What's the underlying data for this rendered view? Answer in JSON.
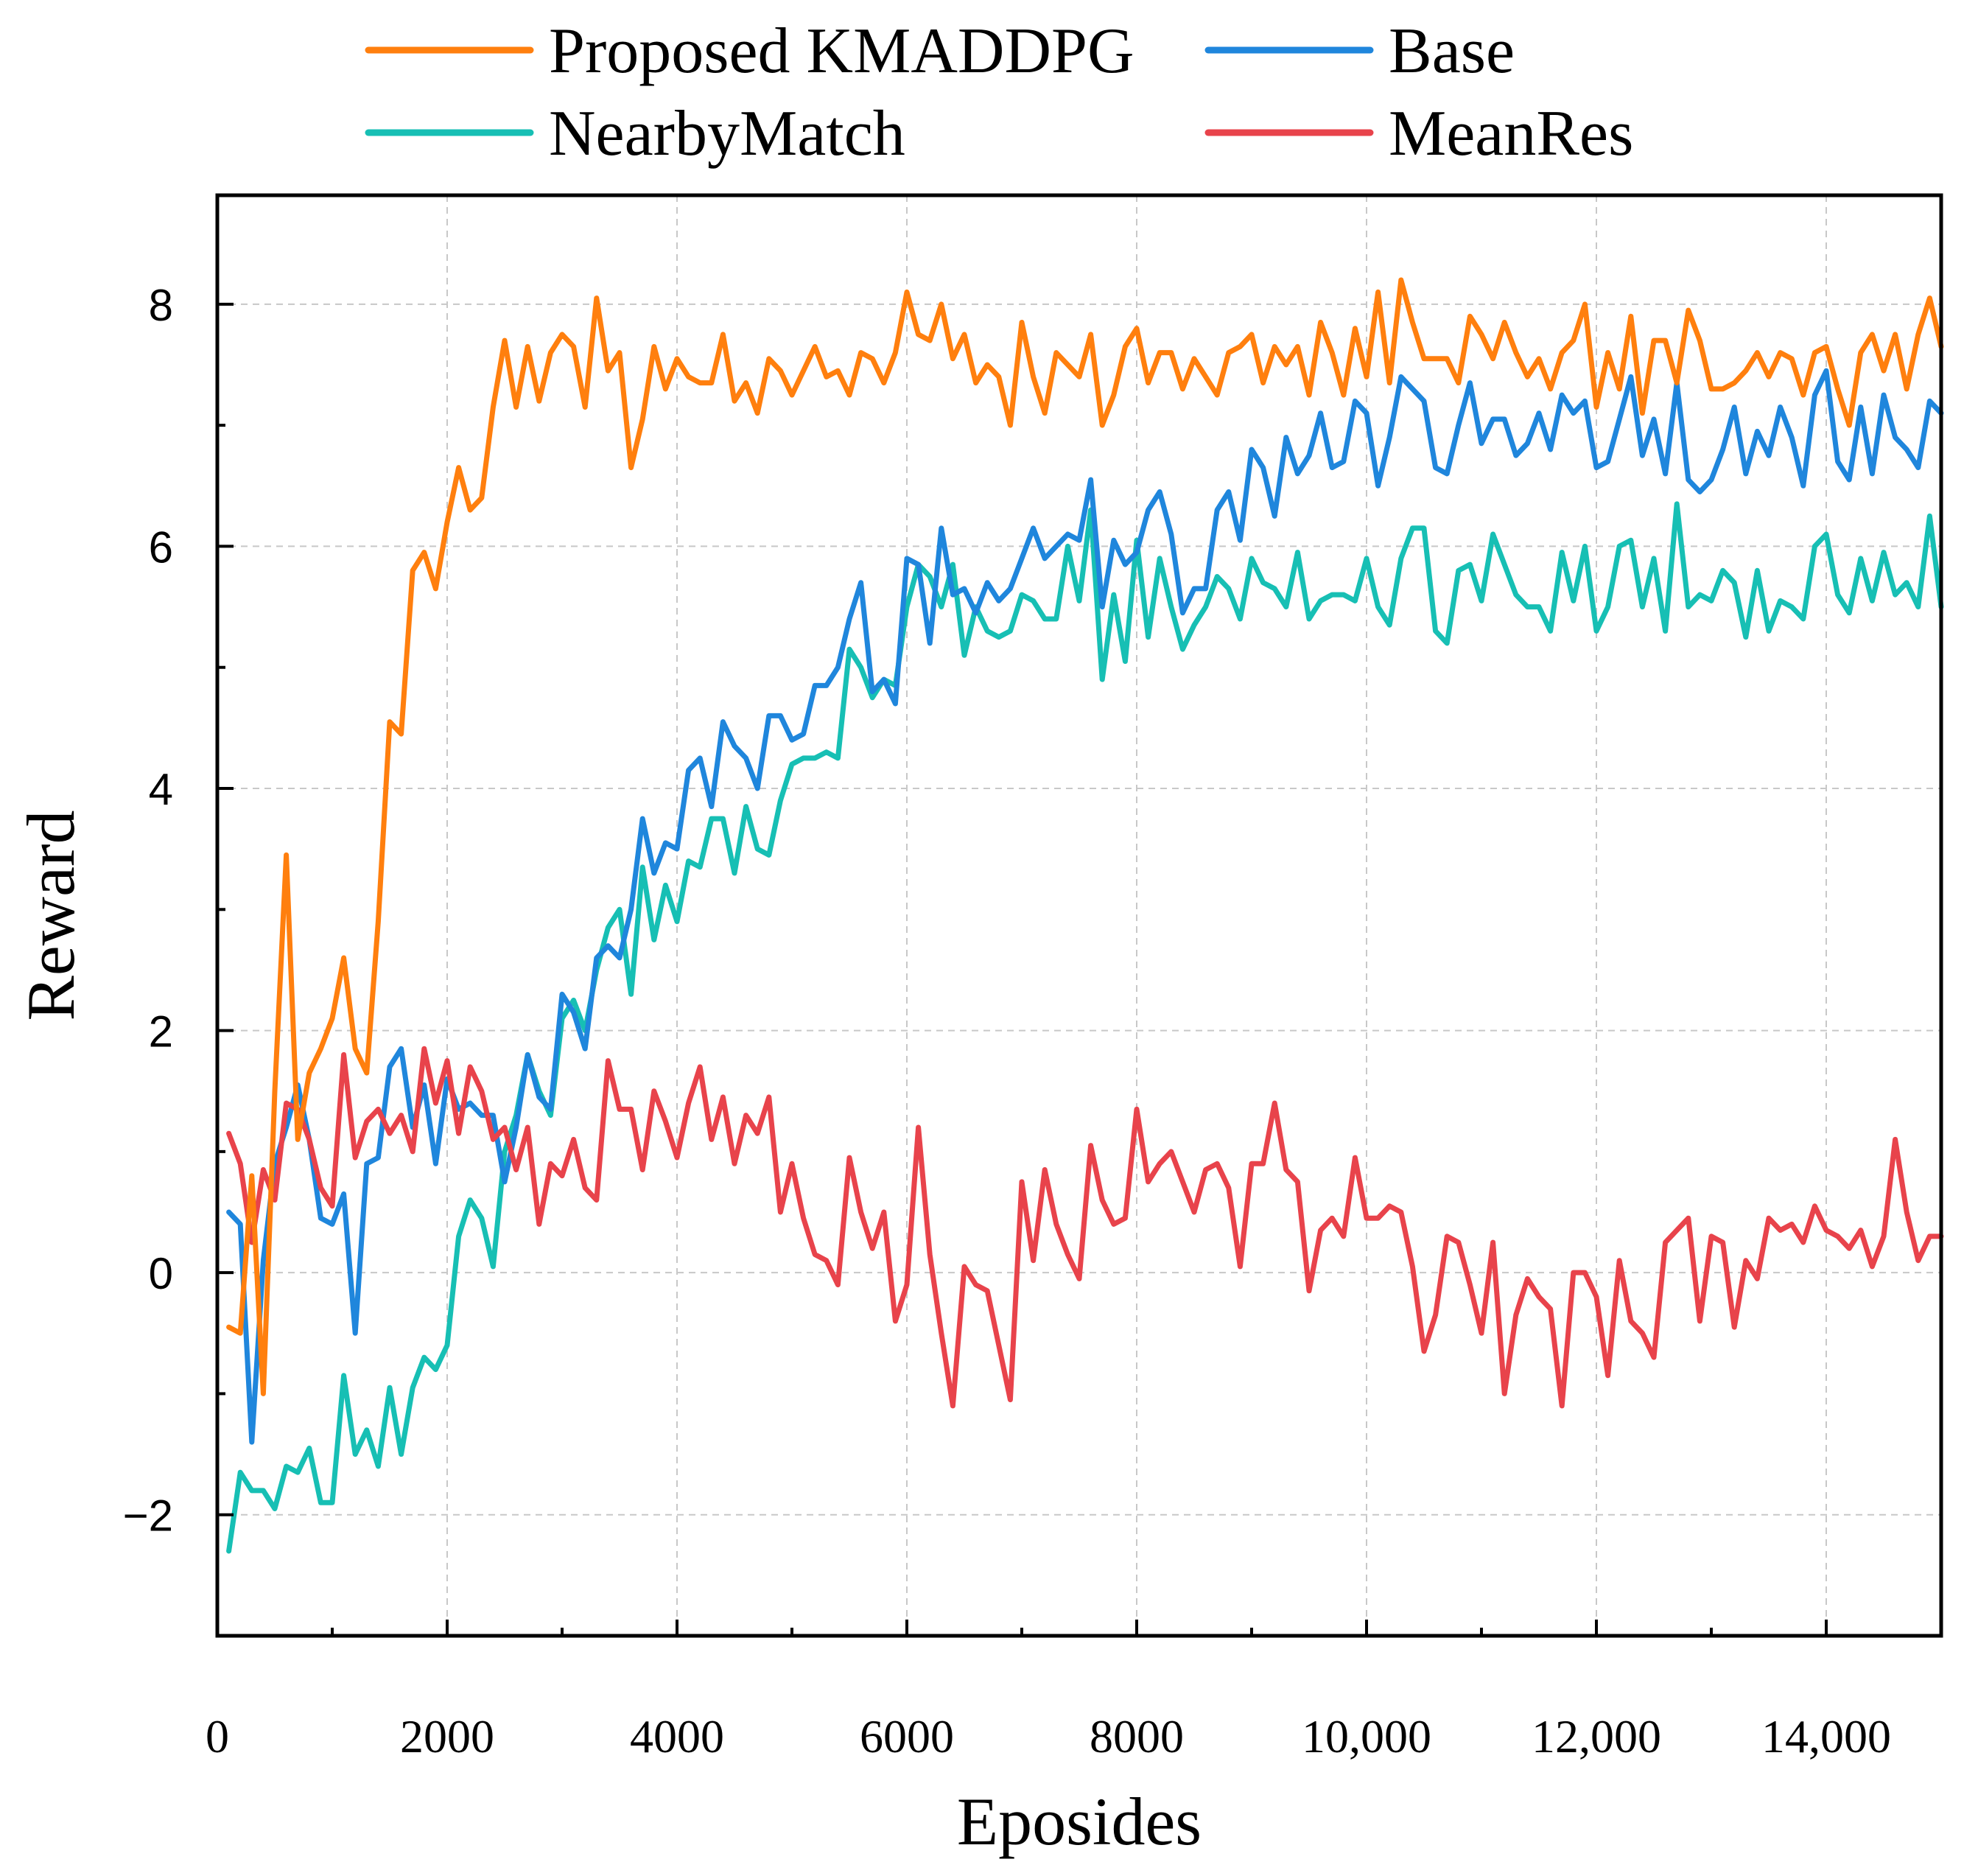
{
  "chart_data": {
    "type": "line",
    "title": "",
    "xlabel": "Eposides",
    "ylabel": "Reward",
    "xlim": [
      0,
      15000
    ],
    "ylim": [
      -3,
      8.9
    ],
    "xticks": [
      0,
      2000,
      4000,
      6000,
      8000,
      10000,
      12000,
      14000
    ],
    "xtick_labels": [
      "0",
      "2000",
      "4000",
      "6000",
      "8000",
      "10,000",
      "12,000",
      "14,000"
    ],
    "yticks": [
      -2,
      0,
      2,
      4,
      6,
      8
    ],
    "ytick_labels": [
      "−2",
      "0",
      "2",
      "4",
      "6",
      "8"
    ],
    "grid": true,
    "legend_position": "top",
    "x_start": 100,
    "x_step": 100,
    "series": [
      {
        "name": "Proposed KMADDPG",
        "color": "#ff7f0e",
        "values": [
          -0.45,
          -0.5,
          0.8,
          -1.0,
          1.5,
          3.45,
          1.1,
          1.65,
          1.85,
          2.1,
          2.6,
          1.85,
          1.65,
          2.9,
          4.55,
          4.45,
          5.8,
          5.95,
          5.65,
          6.2,
          6.65,
          6.3,
          6.4,
          7.15,
          7.7,
          7.15,
          7.65,
          7.2,
          7.6,
          7.75,
          7.65,
          7.15,
          8.05,
          7.45,
          7.6,
          6.65,
          7.05,
          7.65,
          7.3,
          7.55,
          7.4,
          7.35,
          7.35,
          7.75,
          7.2,
          7.35,
          7.1,
          7.55,
          7.45,
          7.25,
          7.45,
          7.65,
          7.4,
          7.45,
          7.25,
          7.6,
          7.55,
          7.35,
          7.6,
          8.1,
          7.75,
          7.7,
          8.0,
          7.55,
          7.75,
          7.35,
          7.5,
          7.4,
          7.0,
          7.85,
          7.4,
          7.1,
          7.6,
          7.5,
          7.4,
          7.75,
          7.0,
          7.25,
          7.65,
          7.8,
          7.35,
          7.6,
          7.6,
          7.3,
          7.55,
          7.4,
          7.25,
          7.6,
          7.65,
          7.75,
          7.35,
          7.65,
          7.5,
          7.65,
          7.25,
          7.85,
          7.6,
          7.25,
          7.8,
          7.4,
          8.1,
          7.35,
          8.2,
          7.85,
          7.55,
          7.55,
          7.55,
          7.35,
          7.9,
          7.75,
          7.55,
          7.85,
          7.6,
          7.4,
          7.55,
          7.3,
          7.6,
          7.7,
          8.0,
          7.15,
          7.6,
          7.3,
          7.9,
          7.1,
          7.7,
          7.7,
          7.35,
          7.95,
          7.7,
          7.3,
          7.3,
          7.35,
          7.45,
          7.6,
          7.4,
          7.6,
          7.55,
          7.25,
          7.6,
          7.65,
          7.3,
          7.0,
          7.6,
          7.75,
          7.45,
          7.75,
          7.3,
          7.75,
          8.05,
          7.65
        ]
      },
      {
        "name": "Base",
        "color": "#1f86dc",
        "values": [
          0.5,
          0.4,
          -1.4,
          0.1,
          0.9,
          1.2,
          1.55,
          1.1,
          0.45,
          0.4,
          0.65,
          -0.5,
          0.9,
          0.95,
          1.7,
          1.85,
          1.2,
          1.55,
          0.9,
          1.6,
          1.35,
          1.4,
          1.3,
          1.3,
          0.75,
          1.2,
          1.8,
          1.45,
          1.35,
          2.3,
          2.15,
          1.85,
          2.6,
          2.7,
          2.6,
          3.0,
          3.75,
          3.3,
          3.55,
          3.5,
          4.15,
          4.25,
          3.85,
          4.55,
          4.35,
          4.25,
          4.0,
          4.6,
          4.6,
          4.4,
          4.45,
          4.85,
          4.85,
          5.0,
          5.4,
          5.7,
          4.8,
          4.9,
          4.7,
          5.9,
          5.85,
          5.2,
          6.15,
          5.6,
          5.65,
          5.45,
          5.7,
          5.55,
          5.65,
          5.9,
          6.15,
          5.9,
          6.0,
          6.1,
          6.05,
          6.55,
          5.5,
          6.05,
          5.85,
          5.95,
          6.3,
          6.45,
          6.1,
          5.45,
          5.65,
          5.65,
          6.3,
          6.45,
          6.05,
          6.8,
          6.65,
          6.25,
          6.9,
          6.6,
          6.75,
          7.1,
          6.65,
          6.7,
          7.2,
          7.1,
          6.5,
          6.9,
          7.4,
          7.3,
          7.2,
          6.65,
          6.6,
          7.0,
          7.35,
          6.85,
          7.05,
          7.05,
          6.75,
          6.85,
          7.1,
          6.8,
          7.25,
          7.1,
          7.2,
          6.65,
          6.7,
          7.05,
          7.4,
          6.75,
          7.05,
          6.6,
          7.35,
          6.55,
          6.45,
          6.55,
          6.8,
          7.15,
          6.6,
          6.95,
          6.75,
          7.15,
          6.9,
          6.5,
          7.25,
          7.45,
          6.7,
          6.55,
          7.15,
          6.6,
          7.25,
          6.9,
          6.8,
          6.65,
          7.2,
          7.1
        ]
      },
      {
        "name": "NearbyMatch",
        "color": "#17bfb4",
        "values": [
          -2.3,
          -1.65,
          -1.8,
          -1.8,
          -1.95,
          -1.6,
          -1.65,
          -1.45,
          -1.9,
          -1.9,
          -0.85,
          -1.5,
          -1.3,
          -1.6,
          -0.95,
          -1.5,
          -0.95,
          -0.7,
          -0.8,
          -0.6,
          0.3,
          0.6,
          0.45,
          0.05,
          1.0,
          1.3,
          1.8,
          1.5,
          1.3,
          2.1,
          2.25,
          2.0,
          2.5,
          2.85,
          3.0,
          2.3,
          3.35,
          2.75,
          3.2,
          2.9,
          3.4,
          3.35,
          3.75,
          3.75,
          3.3,
          3.85,
          3.5,
          3.45,
          3.9,
          4.2,
          4.25,
          4.25,
          4.3,
          4.25,
          5.15,
          5.0,
          4.75,
          4.9,
          4.85,
          5.5,
          5.85,
          5.75,
          5.5,
          5.85,
          5.1,
          5.5,
          5.3,
          5.25,
          5.3,
          5.6,
          5.55,
          5.4,
          5.4,
          6.0,
          5.55,
          6.3,
          4.9,
          5.6,
          5.05,
          6.05,
          5.25,
          5.9,
          5.5,
          5.15,
          5.35,
          5.5,
          5.75,
          5.65,
          5.4,
          5.9,
          5.7,
          5.65,
          5.5,
          5.95,
          5.4,
          5.55,
          5.6,
          5.6,
          5.55,
          5.9,
          5.5,
          5.35,
          5.9,
          6.15,
          6.15,
          5.3,
          5.2,
          5.8,
          5.85,
          5.55,
          6.1,
          5.85,
          5.6,
          5.5,
          5.5,
          5.3,
          5.95,
          5.55,
          6.0,
          5.3,
          5.5,
          6.0,
          6.05,
          5.5,
          5.9,
          5.3,
          6.35,
          5.5,
          5.6,
          5.55,
          5.8,
          5.7,
          5.25,
          5.8,
          5.3,
          5.55,
          5.5,
          5.4,
          6.0,
          6.1,
          5.6,
          5.45,
          5.9,
          5.55,
          5.95,
          5.6,
          5.7,
          5.5,
          6.25,
          5.5
        ]
      },
      {
        "name": "MeanRes",
        "color": "#e8434b",
        "values": [
          1.15,
          0.9,
          0.25,
          0.85,
          0.6,
          1.4,
          1.35,
          1.1,
          0.7,
          0.55,
          1.8,
          0.95,
          1.25,
          1.35,
          1.15,
          1.3,
          1.0,
          1.85,
          1.4,
          1.75,
          1.15,
          1.7,
          1.5,
          1.1,
          1.2,
          0.85,
          1.2,
          0.4,
          0.9,
          0.8,
          1.1,
          0.7,
          0.6,
          1.75,
          1.35,
          1.35,
          0.85,
          1.5,
          1.25,
          0.95,
          1.4,
          1.7,
          1.1,
          1.45,
          0.9,
          1.3,
          1.15,
          1.45,
          0.5,
          0.9,
          0.45,
          0.15,
          0.1,
          -0.1,
          0.95,
          0.5,
          0.2,
          0.5,
          -0.4,
          -0.1,
          1.2,
          0.15,
          -0.5,
          -1.1,
          0.05,
          -0.1,
          -0.15,
          -0.6,
          -1.05,
          0.75,
          0.1,
          0.85,
          0.4,
          0.15,
          -0.05,
          1.05,
          0.6,
          0.4,
          0.45,
          1.35,
          0.75,
          0.9,
          1.0,
          0.75,
          0.5,
          0.85,
          0.9,
          0.7,
          0.05,
          0.9,
          0.9,
          1.4,
          0.85,
          0.75,
          -0.15,
          0.35,
          0.45,
          0.3,
          0.95,
          0.45,
          0.45,
          0.55,
          0.5,
          0.05,
          -0.65,
          -0.35,
          0.3,
          0.25,
          -0.1,
          -0.5,
          0.25,
          -1.0,
          -0.35,
          -0.05,
          -0.2,
          -0.3,
          -1.1,
          0.0,
          0.0,
          -0.2,
          -0.85,
          0.1,
          -0.4,
          -0.5,
          -0.7,
          0.25,
          0.35,
          0.45,
          -0.4,
          0.3,
          0.25,
          -0.45,
          0.1,
          -0.05,
          0.45,
          0.35,
          0.4,
          0.25,
          0.55,
          0.35,
          0.3,
          0.2,
          0.35,
          0.05,
          0.3,
          1.1,
          0.5,
          0.1,
          0.3,
          0.3
        ]
      }
    ]
  }
}
